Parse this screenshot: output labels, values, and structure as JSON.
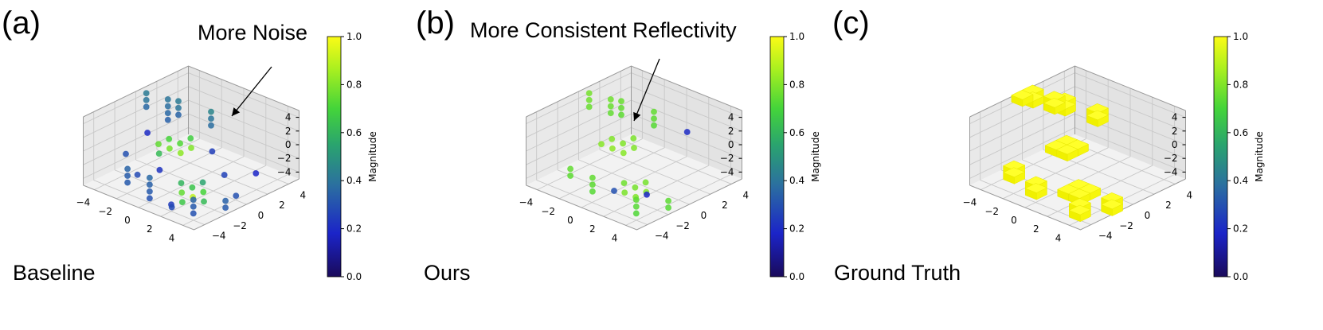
{
  "figure": {
    "panels": [
      {
        "letter": "(a)",
        "caption": "Baseline",
        "annotation": "More Noise",
        "colorbar_label": "Magnitude"
      },
      {
        "letter": "(b)",
        "caption": "Ours",
        "annotation": "More Consistent Reflectivity",
        "colorbar_label": "Magnitude"
      },
      {
        "letter": "(c)",
        "caption": "Ground Truth",
        "annotation": "",
        "colorbar_label": "Magnitude"
      }
    ]
  },
  "chart_data": [
    {
      "type": "scatter",
      "subtype": "3d-scatter",
      "panel": "(a)",
      "axes": {
        "x_ticks": [
          "−4",
          "−2",
          "0",
          "2",
          "4"
        ],
        "y_ticks": [
          "−4",
          "−2",
          "0",
          "2",
          "4"
        ],
        "z_ticks": [
          "−4",
          "−2",
          "0",
          "2",
          "4"
        ],
        "xlim": [
          -5,
          5
        ],
        "ylim": [
          -5,
          5
        ],
        "zlim": [
          -5,
          5
        ],
        "grid": true
      },
      "colorbar": {
        "label": "Magnitude",
        "range": [
          0.0,
          1.0
        ],
        "ticks": [
          "0.0",
          "0.2",
          "0.4",
          "0.6",
          "0.8",
          "1.0"
        ],
        "colormap": "viridis-like"
      },
      "points": [
        [
          -4,
          -2,
          1,
          0.45
        ],
        [
          -4,
          -2,
          0,
          0.4
        ],
        [
          -4,
          -2,
          -1,
          0.38
        ],
        [
          -3,
          -4,
          2,
          0.42
        ],
        [
          -3,
          -4,
          1,
          0.4
        ],
        [
          -3,
          -4,
          0,
          0.35
        ],
        [
          -2,
          -4,
          3,
          0.4
        ],
        [
          -2,
          -4,
          2,
          0.38
        ],
        [
          -2,
          -4,
          1,
          0.36
        ],
        [
          -2,
          -4,
          0,
          0.34
        ],
        [
          -1,
          -5,
          4,
          0.42
        ],
        [
          -1,
          -5,
          3,
          0.4
        ],
        [
          -1,
          -5,
          2,
          0.36
        ],
        [
          0,
          -2,
          0,
          0.7
        ],
        [
          0,
          -1,
          0,
          0.72
        ],
        [
          1,
          -2,
          0,
          0.75
        ],
        [
          1,
          -1,
          0,
          0.78
        ],
        [
          0,
          0,
          0,
          0.8
        ],
        [
          1,
          0,
          0,
          0.82
        ],
        [
          -1,
          -1,
          0,
          0.68
        ],
        [
          2,
          -1,
          0,
          0.62
        ],
        [
          2,
          2,
          -3,
          0.65
        ],
        [
          2,
          3,
          -3,
          0.7
        ],
        [
          3,
          2,
          -3,
          0.75
        ],
        [
          3,
          3,
          -3,
          0.9
        ],
        [
          2,
          1,
          -3,
          0.6
        ],
        [
          1,
          2,
          -3,
          0.55
        ],
        [
          4,
          3,
          -3,
          0.66
        ],
        [
          3,
          4,
          -3,
          0.62
        ],
        [
          4,
          4,
          -2,
          0.35
        ],
        [
          4,
          4,
          -3,
          0.32
        ],
        [
          4,
          4,
          -4,
          0.3
        ],
        [
          5,
          3,
          -3,
          0.28
        ],
        [
          2,
          5,
          -3,
          0.34
        ],
        [
          2,
          5,
          -4,
          0.32
        ],
        [
          1,
          5,
          -3,
          0.3
        ],
        [
          5,
          1,
          0,
          0.36
        ],
        [
          5,
          1,
          -1,
          0.34
        ],
        [
          5,
          1,
          -2,
          0.32
        ],
        [
          5,
          1,
          -3,
          0.3
        ],
        [
          5,
          -1,
          0,
          0.35
        ],
        [
          5,
          -1,
          -1,
          0.33
        ],
        [
          5,
          -1,
          -2,
          0.32
        ],
        [
          -2,
          0,
          -2,
          0.25
        ],
        [
          1,
          -3,
          1,
          0.2
        ],
        [
          3,
          0,
          -1,
          0.22
        ],
        [
          2,
          -4,
          -2,
          0.3
        ],
        [
          -3,
          3,
          -4,
          0.18
        ],
        [
          4,
          2,
          -4,
          0.24
        ],
        [
          0,
          3,
          -2,
          0.26
        ],
        [
          3,
          -2,
          -3,
          0.28
        ]
      ]
    },
    {
      "type": "scatter",
      "subtype": "3d-scatter",
      "panel": "(b)",
      "axes": {
        "x_ticks": [
          "−4",
          "−2",
          "0",
          "2",
          "4"
        ],
        "y_ticks": [
          "−4",
          "−2",
          "0",
          "2",
          "4"
        ],
        "z_ticks": [
          "−4",
          "−2",
          "0",
          "2",
          "4"
        ],
        "xlim": [
          -5,
          5
        ],
        "ylim": [
          -5,
          5
        ],
        "zlim": [
          -5,
          5
        ],
        "grid": true
      },
      "colorbar": {
        "label": "Magnitude",
        "range": [
          0.0,
          1.0
        ],
        "ticks": [
          "0.0",
          "0.2",
          "0.4",
          "0.6",
          "0.8",
          "1.0"
        ],
        "colormap": "viridis-like"
      },
      "points": [
        [
          -4,
          -2,
          1,
          0.75
        ],
        [
          -4,
          -2,
          0,
          0.74
        ],
        [
          -4,
          -2,
          -1,
          0.73
        ],
        [
          -3,
          -4,
          2,
          0.76
        ],
        [
          -3,
          -4,
          1,
          0.75
        ],
        [
          -3,
          -4,
          0,
          0.74
        ],
        [
          -2,
          -4,
          3,
          0.77
        ],
        [
          -2,
          -4,
          2,
          0.76
        ],
        [
          -2,
          -4,
          1,
          0.75
        ],
        [
          -1,
          -5,
          4,
          0.78
        ],
        [
          -1,
          -5,
          3,
          0.77
        ],
        [
          -1,
          -5,
          2,
          0.76
        ],
        [
          0,
          -2,
          0,
          0.8
        ],
        [
          0,
          -1,
          0,
          0.8
        ],
        [
          1,
          -2,
          0,
          0.81
        ],
        [
          1,
          -1,
          0,
          0.82
        ],
        [
          0,
          0,
          0,
          0.8
        ],
        [
          1,
          0,
          0,
          0.81
        ],
        [
          -1,
          -1,
          0,
          0.79
        ],
        [
          2,
          2,
          -3,
          0.78
        ],
        [
          2,
          3,
          -3,
          0.8
        ],
        [
          3,
          2,
          -3,
          0.79
        ],
        [
          3,
          3,
          -3,
          0.8
        ],
        [
          2,
          1,
          -3,
          0.77
        ],
        [
          1,
          2,
          -3,
          0.78
        ],
        [
          4,
          4,
          -2,
          0.74
        ],
        [
          4,
          4,
          -3,
          0.73
        ],
        [
          4,
          4,
          -4,
          0.72
        ],
        [
          2,
          5,
          -3,
          0.74
        ],
        [
          2,
          5,
          -4,
          0.73
        ],
        [
          5,
          1,
          0,
          0.75
        ],
        [
          5,
          1,
          -1,
          0.74
        ],
        [
          5,
          1,
          -2,
          0.73
        ],
        [
          5,
          -1,
          0,
          0.75
        ],
        [
          5,
          -1,
          -1,
          0.74
        ],
        [
          -4,
          1,
          0,
          0.2
        ],
        [
          3,
          4,
          -2,
          0.18
        ],
        [
          4,
          2,
          -2,
          0.3
        ]
      ]
    },
    {
      "type": "scatter",
      "subtype": "3d-voxel",
      "panel": "(c)",
      "axes": {
        "x_ticks": [
          "−4",
          "−2",
          "0",
          "2",
          "4"
        ],
        "y_ticks": [
          "−4",
          "−2",
          "0",
          "2",
          "4"
        ],
        "z_ticks": [
          "−4",
          "−2",
          "0",
          "2",
          "4"
        ],
        "xlim": [
          -5,
          5
        ],
        "ylim": [
          -5,
          5
        ],
        "zlim": [
          -5,
          5
        ],
        "grid": true
      },
      "colorbar": {
        "label": "Magnitude",
        "range": [
          0.0,
          1.0
        ],
        "ticks": [
          "0.0",
          "0.2",
          "0.4",
          "0.6",
          "0.8",
          "1.0"
        ],
        "colormap": "viridis-like"
      },
      "points": [
        [
          -4,
          -2,
          1,
          1.0
        ],
        [
          -4,
          -2,
          0,
          1.0
        ],
        [
          -3,
          -4,
          2,
          1.0
        ],
        [
          -3,
          -4,
          1,
          1.0
        ],
        [
          -2,
          -4,
          3,
          1.0
        ],
        [
          -2,
          -4,
          2,
          1.0
        ],
        [
          -1,
          -5,
          4,
          1.0
        ],
        [
          -1,
          -5,
          3,
          1.0
        ],
        [
          0,
          -5,
          4,
          1.0
        ],
        [
          0,
          -1,
          0,
          1.0
        ],
        [
          1,
          -1,
          0,
          1.0
        ],
        [
          1,
          0,
          0,
          1.0
        ],
        [
          0,
          0,
          0,
          1.0
        ],
        [
          2,
          2,
          -3,
          1.0
        ],
        [
          2,
          3,
          -3,
          1.0
        ],
        [
          3,
          2,
          -3,
          1.0
        ],
        [
          3,
          3,
          -3,
          1.0
        ],
        [
          4,
          4,
          -3,
          1.0
        ],
        [
          4,
          4,
          -4,
          1.0
        ],
        [
          2,
          5,
          -3,
          1.0
        ],
        [
          2,
          5,
          -4,
          1.0
        ],
        [
          5,
          1,
          -1,
          1.0
        ],
        [
          5,
          1,
          -2,
          1.0
        ],
        [
          5,
          -1,
          0,
          1.0
        ],
        [
          5,
          -1,
          -1,
          1.0
        ]
      ]
    }
  ]
}
